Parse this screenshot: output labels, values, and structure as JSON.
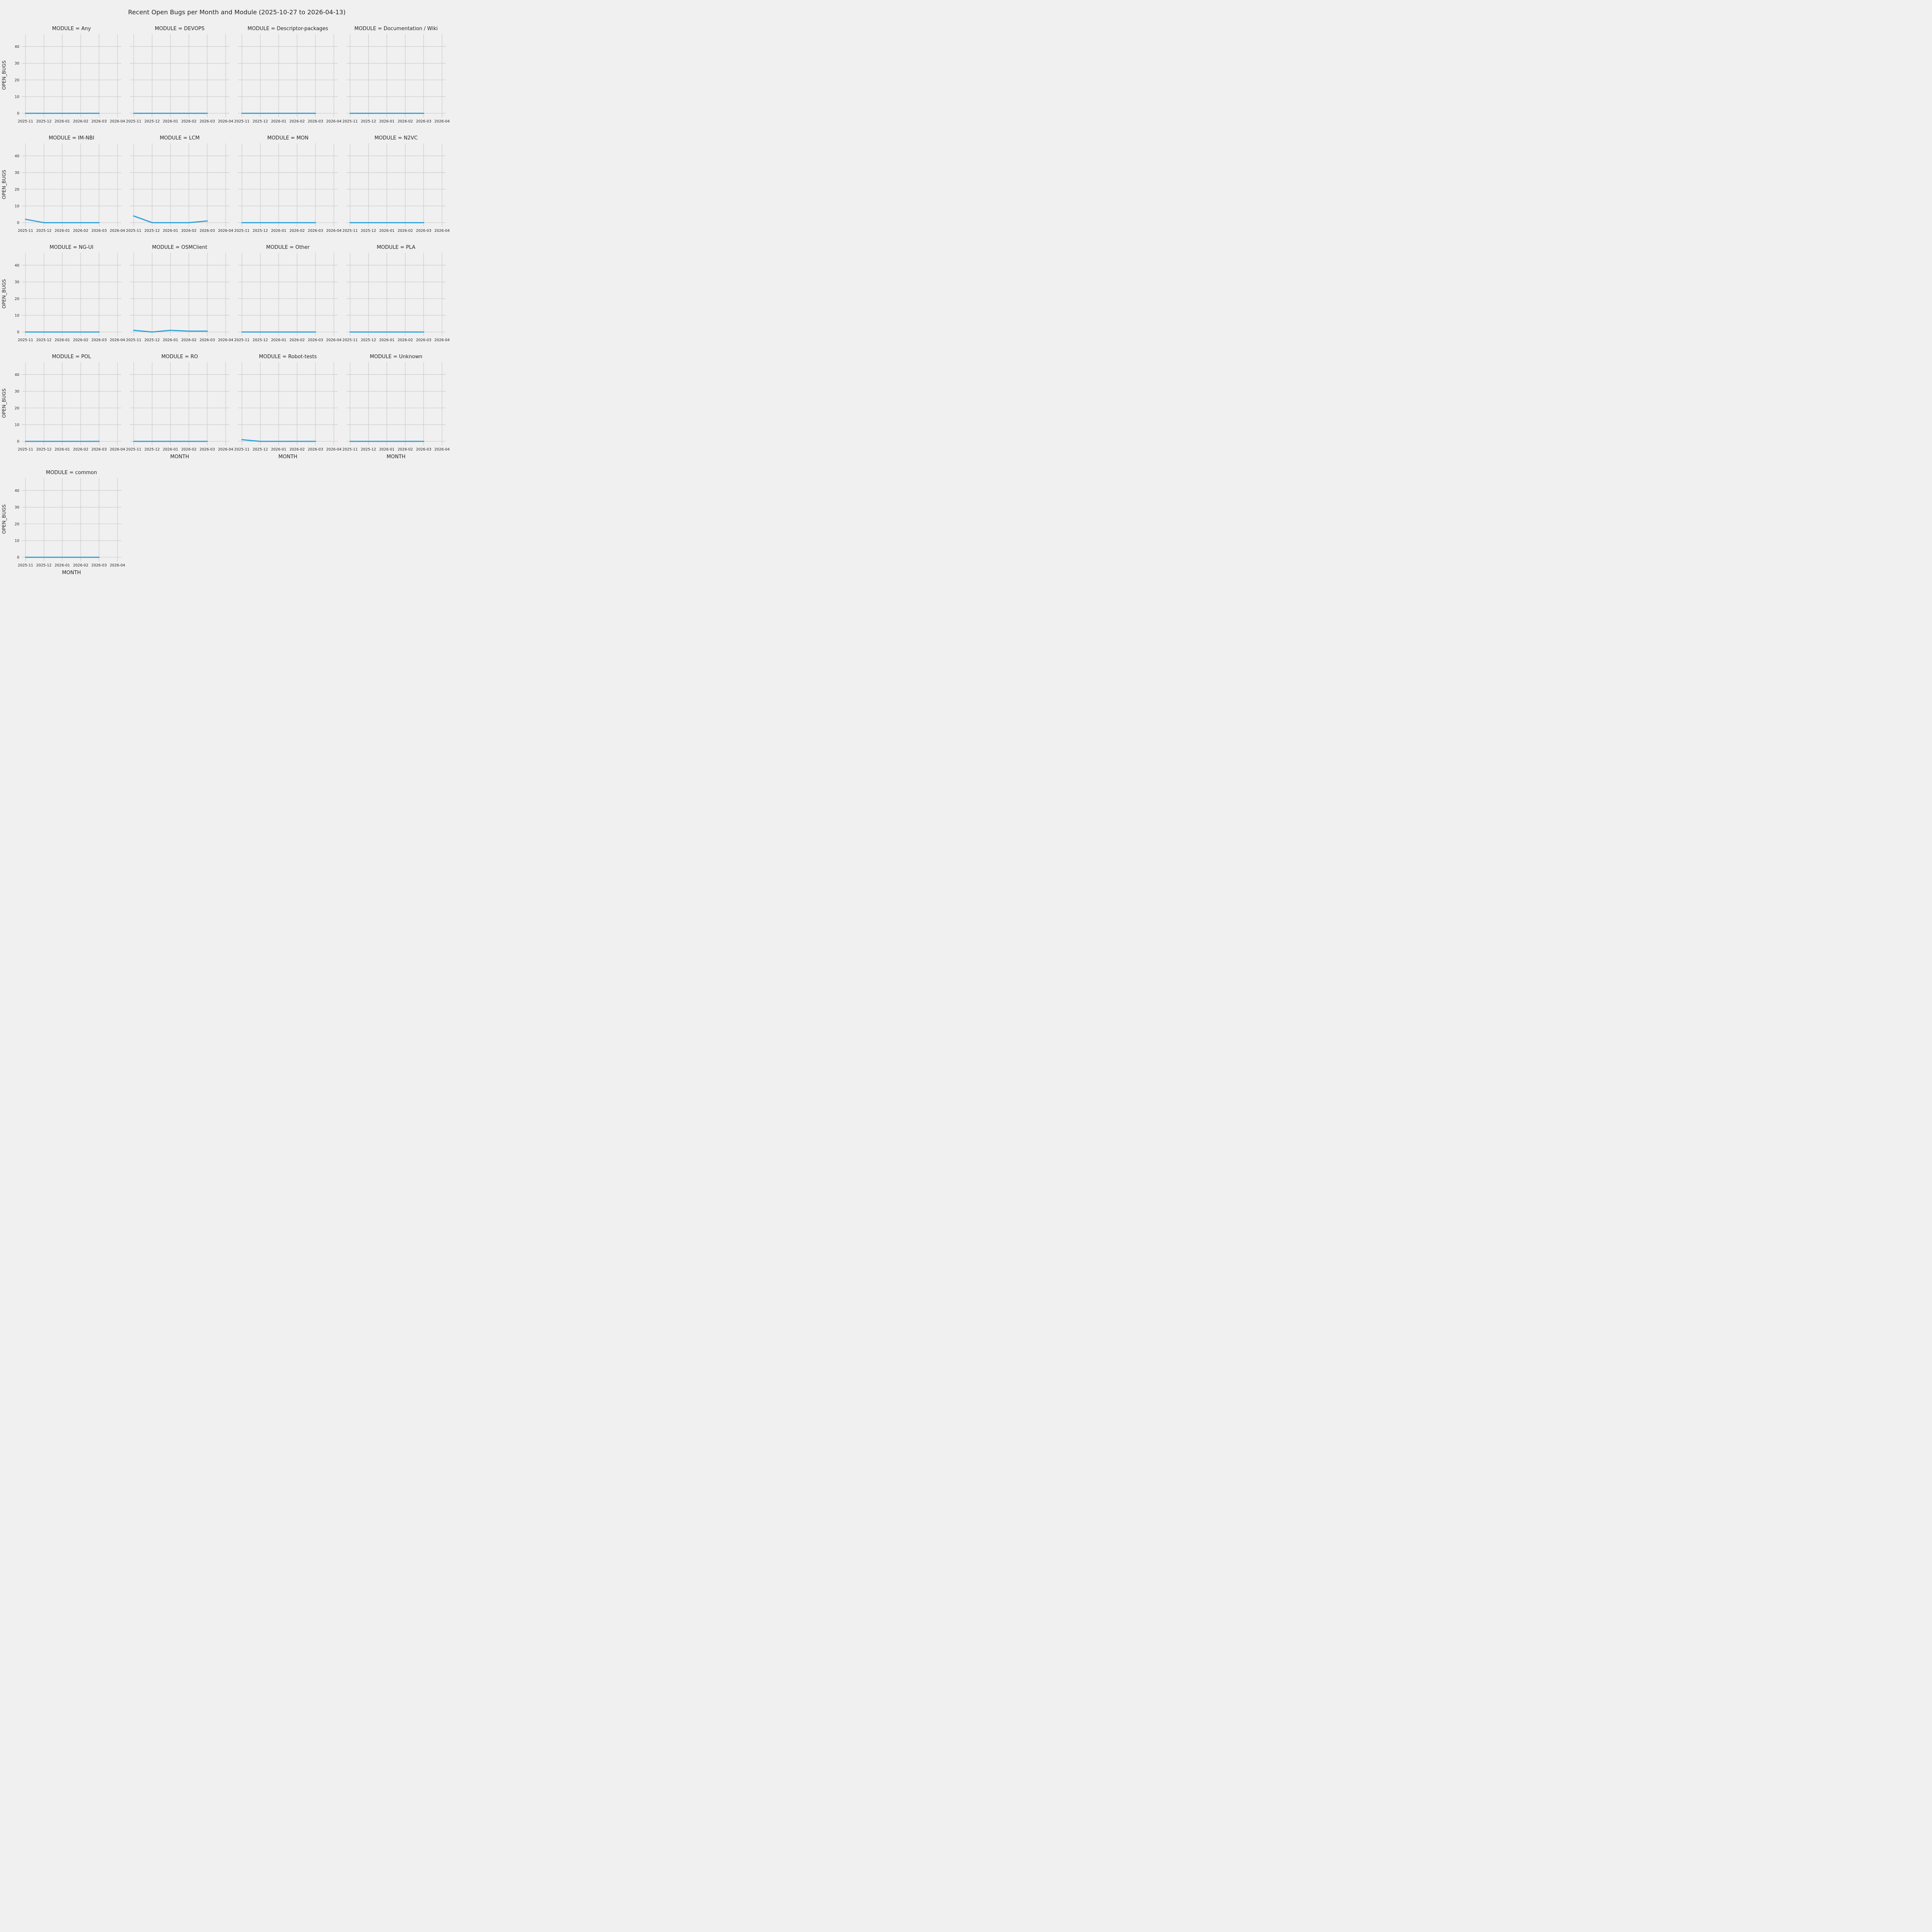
{
  "title": "Recent Open Bugs per Month and Module (2025-10-27 to 2026-04-13)",
  "chart_data": {
    "type": "line",
    "grid": true,
    "legend": false,
    "xlabel": "MONTH",
    "ylabel": "OPEN_BUGS",
    "x_ticks": [
      "2025-11",
      "2025-12",
      "2026-01",
      "2026-02",
      "2026-03",
      "2026-04"
    ],
    "y_ticks": [
      0,
      10,
      20,
      30,
      40
    ],
    "ylim": [
      -2.5,
      47.5
    ],
    "line_color": "#30a2da",
    "facet_columns": 4,
    "facets": [
      {
        "title": "MODULE = Any",
        "x": [
          "2025-11",
          "2025-12",
          "2026-01",
          "2026-02",
          "2026-03"
        ],
        "values": [
          0,
          0,
          0,
          0,
          0
        ]
      },
      {
        "title": "MODULE = DEVOPS",
        "x": [
          "2025-11",
          "2025-12",
          "2026-01",
          "2026-02",
          "2026-03"
        ],
        "values": [
          0,
          0,
          0,
          0,
          0
        ]
      },
      {
        "title": "MODULE = Descriptor-packages",
        "x": [
          "2025-11",
          "2025-12",
          "2026-01",
          "2026-02",
          "2026-03"
        ],
        "values": [
          0,
          0,
          0,
          0,
          0
        ]
      },
      {
        "title": "MODULE = Documentation / Wiki",
        "x": [
          "2025-11",
          "2025-12",
          "2026-01",
          "2026-02",
          "2026-03"
        ],
        "values": [
          0,
          0,
          0,
          0,
          0
        ]
      },
      {
        "title": "MODULE = IM-NBI",
        "x": [
          "2025-11",
          "2025-12",
          "2026-01",
          "2026-02",
          "2026-03"
        ],
        "values": [
          2,
          0,
          0,
          0,
          0
        ]
      },
      {
        "title": "MODULE = LCM",
        "x": [
          "2025-11",
          "2025-12",
          "2026-01",
          "2026-02",
          "2026-03"
        ],
        "values": [
          4,
          0,
          0,
          0,
          1
        ]
      },
      {
        "title": "MODULE = MON",
        "x": [
          "2025-11",
          "2025-12",
          "2026-01",
          "2026-02",
          "2026-03"
        ],
        "values": [
          0,
          0,
          0,
          0,
          0
        ]
      },
      {
        "title": "MODULE = N2VC",
        "x": [
          "2025-11",
          "2025-12",
          "2026-01",
          "2026-02",
          "2026-03"
        ],
        "values": [
          0,
          0,
          0,
          0,
          0
        ]
      },
      {
        "title": "MODULE = NG-UI",
        "x": [
          "2025-11",
          "2025-12",
          "2026-01",
          "2026-02",
          "2026-03"
        ],
        "values": [
          0,
          0,
          0,
          0,
          0
        ]
      },
      {
        "title": "MODULE = OSMClient",
        "x": [
          "2025-11",
          "2025-12",
          "2026-01",
          "2026-02",
          "2026-03"
        ],
        "values": [
          1,
          0,
          1,
          0.5,
          0.5
        ]
      },
      {
        "title": "MODULE = Other",
        "x": [
          "2025-11",
          "2025-12",
          "2026-01",
          "2026-02",
          "2026-03"
        ],
        "values": [
          0,
          0,
          0,
          0,
          0
        ]
      },
      {
        "title": "MODULE = PLA",
        "x": [
          "2025-11",
          "2025-12",
          "2026-01",
          "2026-02",
          "2026-03"
        ],
        "values": [
          0,
          0,
          0,
          0,
          0
        ]
      },
      {
        "title": "MODULE = POL",
        "x": [
          "2025-11",
          "2025-12",
          "2026-01",
          "2026-02",
          "2026-03"
        ],
        "values": [
          0,
          0,
          0,
          0,
          0
        ]
      },
      {
        "title": "MODULE = RO",
        "x": [
          "2025-11",
          "2025-12",
          "2026-01",
          "2026-02",
          "2026-03"
        ],
        "values": [
          0,
          0,
          0,
          0,
          0
        ]
      },
      {
        "title": "MODULE = Robot-tests",
        "x": [
          "2025-11",
          "2025-12",
          "2026-01",
          "2026-02",
          "2026-03"
        ],
        "values": [
          1,
          0,
          0,
          0,
          0
        ]
      },
      {
        "title": "MODULE = Unknown",
        "x": [
          "2025-11",
          "2025-12",
          "2026-01",
          "2026-02",
          "2026-03"
        ],
        "values": [
          0,
          0,
          0,
          0,
          0
        ]
      },
      {
        "title": "MODULE = common",
        "x": [
          "2025-11",
          "2025-12",
          "2026-01",
          "2026-02",
          "2026-03"
        ],
        "values": [
          0,
          0,
          0,
          0,
          0
        ]
      }
    ]
  }
}
